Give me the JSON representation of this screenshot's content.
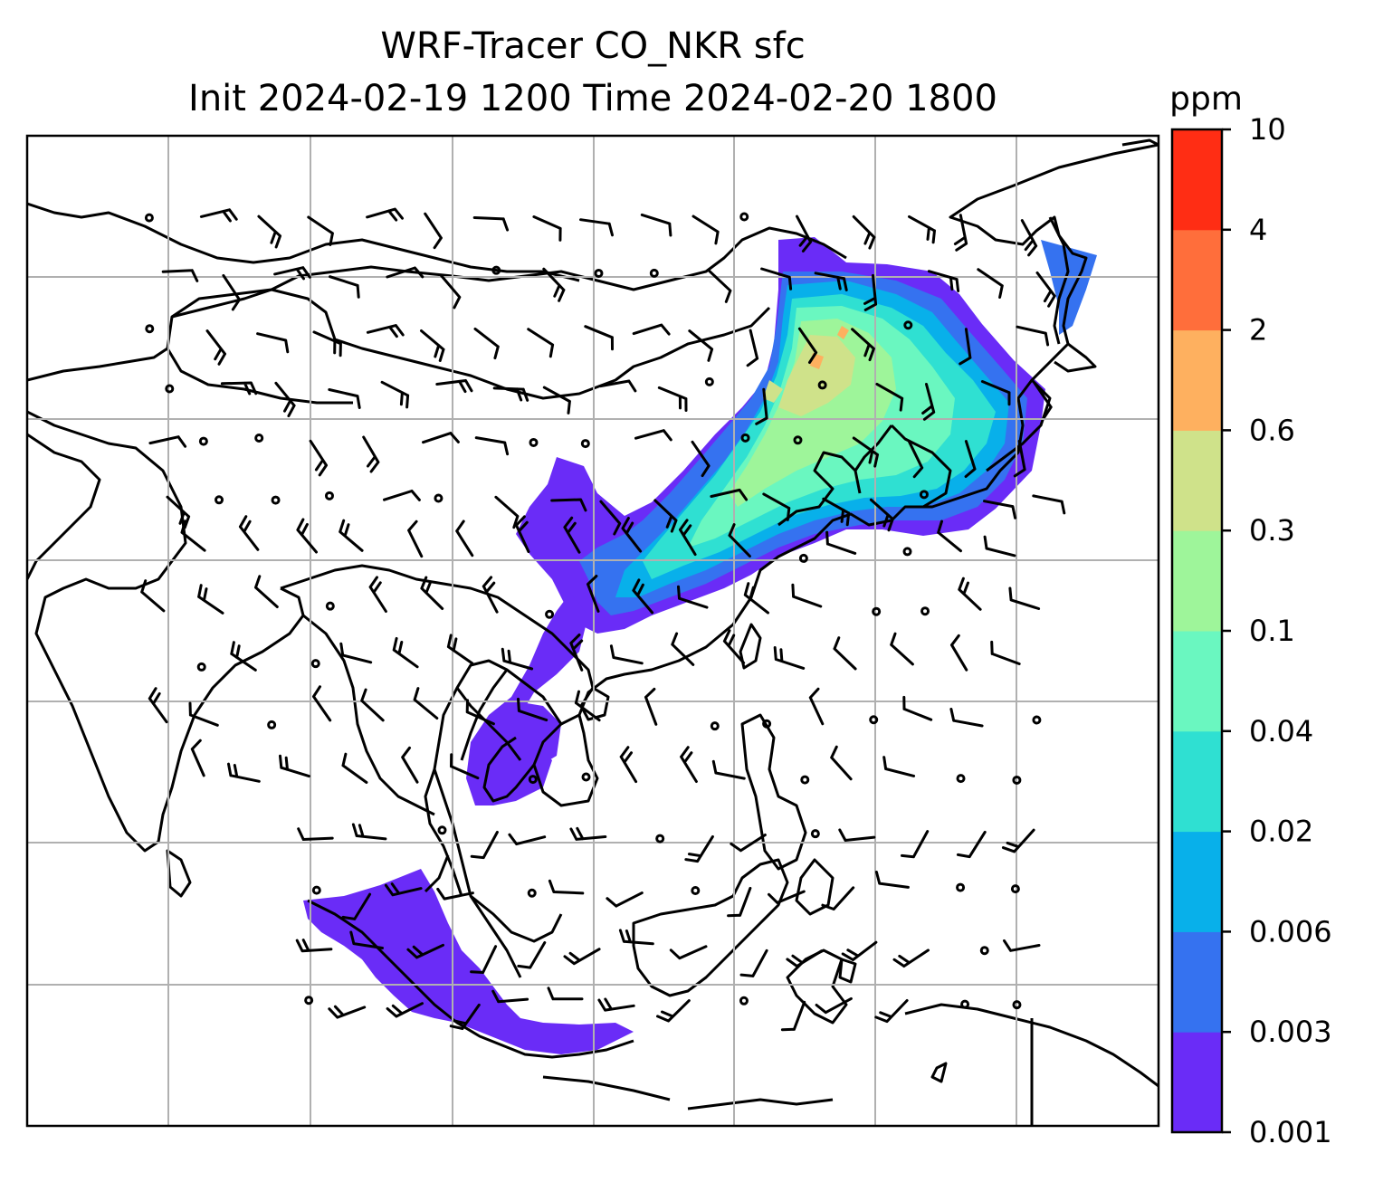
{
  "title": {
    "line1": "WRF-Tracer CO_NKR sfc",
    "line2": "Init 2024-02-19 1200 Time 2024-02-20 1800"
  },
  "colorbar": {
    "unit": "ppm",
    "levels": [
      "0.001",
      "0.003",
      "0.006",
      "0.02",
      "0.04",
      "0.1",
      "0.3",
      "0.6",
      "2",
      "4",
      "10"
    ],
    "colors": [
      "#6a2cf7",
      "#3572f0",
      "#08b0ea",
      "#2fe0d2",
      "#6af7c0",
      "#9ef59a",
      "#cfe28a",
      "#feb05f",
      "#ff6e3b",
      "#ff2d14"
    ]
  },
  "map": {
    "field": "CO_NKR",
    "level": "sfc",
    "gridlines": true,
    "wind_barbs": true
  }
}
